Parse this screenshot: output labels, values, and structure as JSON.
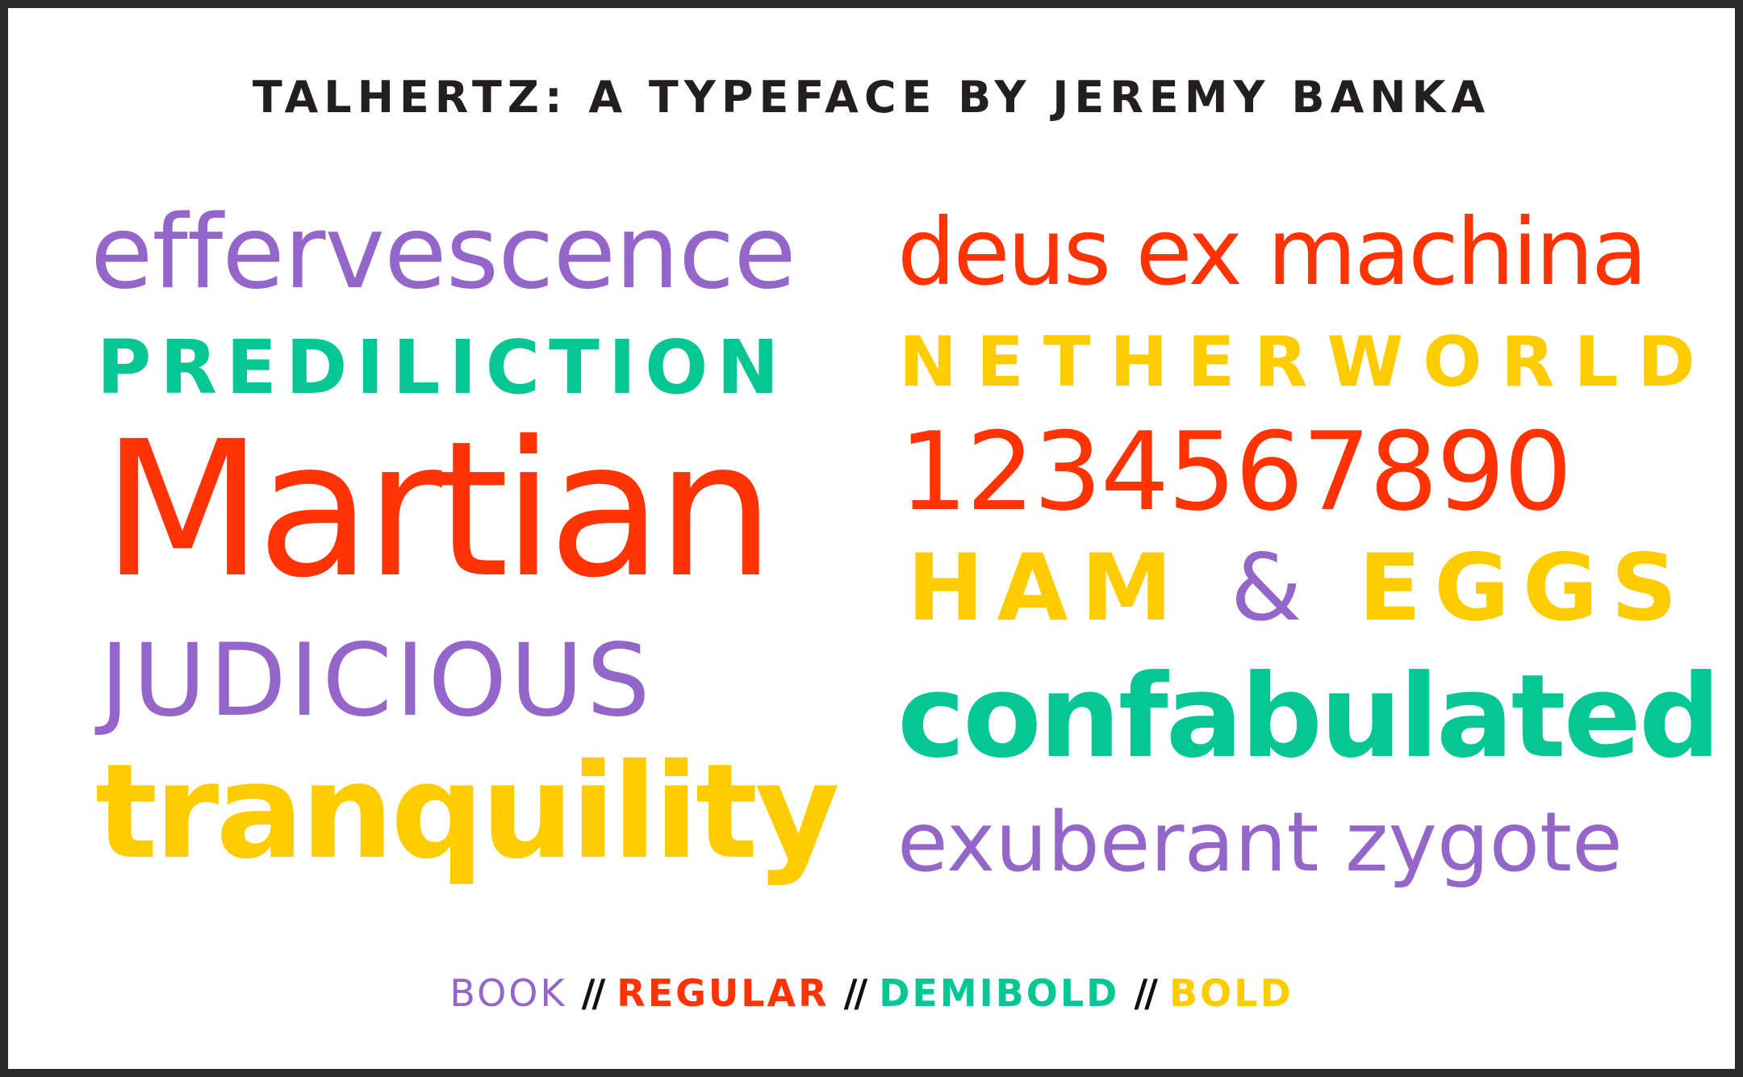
{
  "title": "TALHERTZ: A TYPEFACE BY JEREMY BANKA",
  "colors": {
    "purple": "#9566c9",
    "green": "#06c793",
    "red": "#ff3304",
    "yellow": "#ffcc00",
    "text": "#231f20"
  },
  "left_column": [
    "effervescence",
    "PREDILICTION",
    "Martian",
    "JUDICIOUS",
    "tranquility"
  ],
  "right_column": [
    "deus ex machina",
    "NETHERWORLD",
    "1234567890",
    {
      "a": "HAM",
      "amp": "&",
      "b": "EGGS"
    },
    "confabulated",
    "exuberant zygote"
  ],
  "weights": {
    "book": "BOOK",
    "separator": "//",
    "regular": "REGULAR",
    "demibold": "DEMIBOLD",
    "bold": "BOLD"
  }
}
